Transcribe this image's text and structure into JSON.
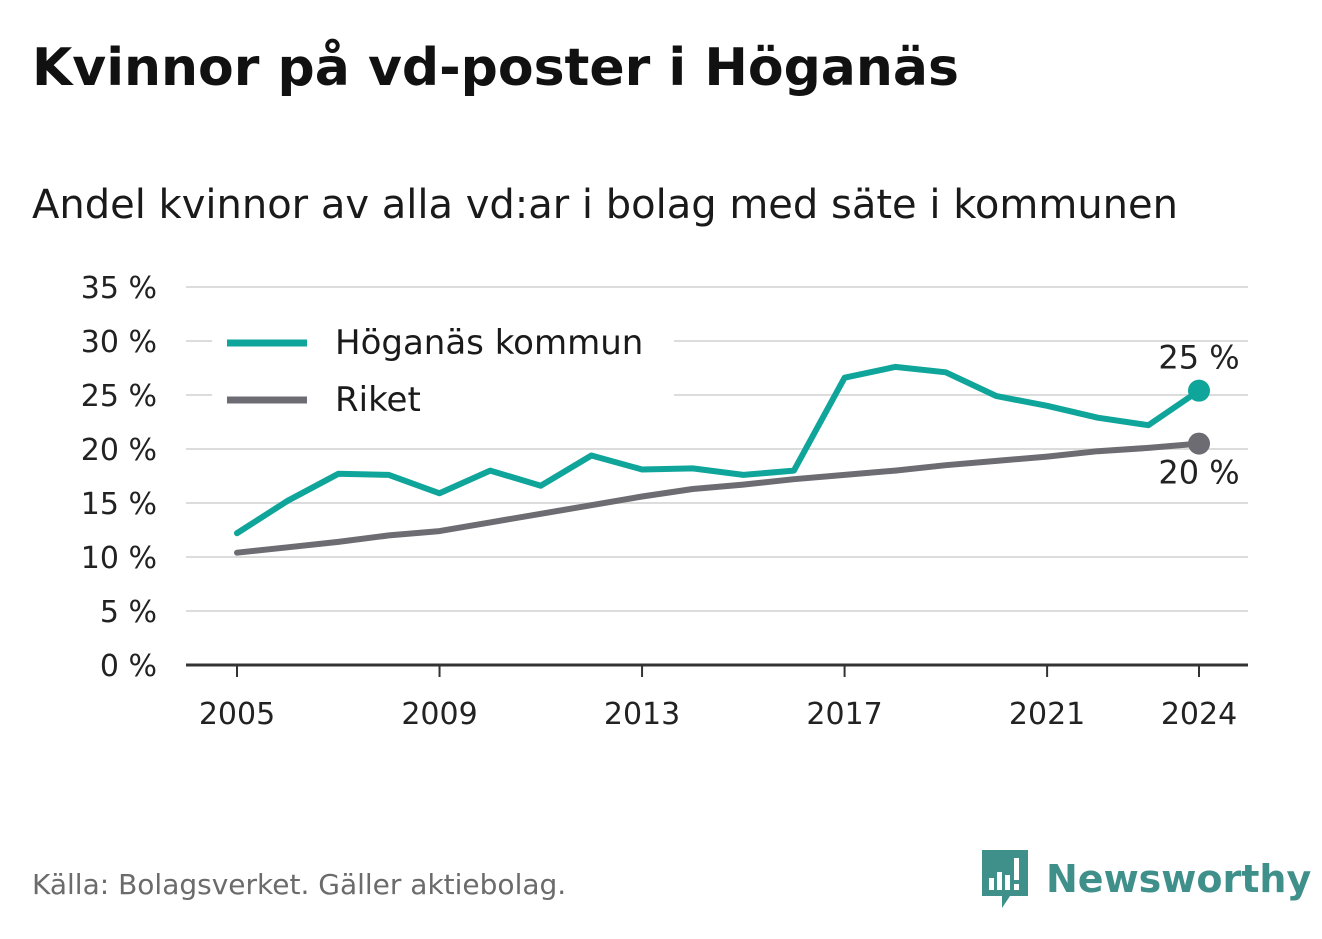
{
  "title": "Kvinnor på vd-poster i Höganäs",
  "subtitle": "Andel kvinnor av alla vd:ar i bolag med säte i kommunen",
  "source": "Källa: Bolagsverket. Gäller aktiebolag.",
  "brand": "Newsworthy",
  "chart_data": {
    "type": "line",
    "x": [
      2005,
      2006,
      2007,
      2008,
      2009,
      2010,
      2011,
      2012,
      2013,
      2014,
      2015,
      2016,
      2017,
      2018,
      2019,
      2020,
      2021,
      2022,
      2023,
      2024
    ],
    "series": [
      {
        "name": "Höganäs kommun",
        "color": "#0fa59a",
        "values": [
          12.2,
          15.2,
          17.7,
          17.6,
          15.9,
          18.0,
          16.6,
          19.4,
          18.1,
          18.2,
          17.6,
          18.0,
          26.6,
          27.6,
          27.1,
          24.9,
          24.0,
          22.9,
          22.2,
          25.4
        ],
        "end_label": "25 %"
      },
      {
        "name": "Riket",
        "color": "#6d6c72",
        "values": [
          10.4,
          10.9,
          11.4,
          12.0,
          12.4,
          13.2,
          14.0,
          14.8,
          15.6,
          16.3,
          16.7,
          17.2,
          17.6,
          18.0,
          18.5,
          18.9,
          19.3,
          19.8,
          20.1,
          20.5
        ],
        "end_label": "20 %"
      }
    ],
    "xticks": [
      2005,
      2009,
      2013,
      2017,
      2021,
      2024
    ],
    "xtick_labels": [
      "2005",
      "2009",
      "2013",
      "2017",
      "2021",
      "2024"
    ],
    "yticks": [
      0,
      5,
      10,
      15,
      20,
      25,
      30,
      35
    ],
    "ytick_labels": [
      "0 %",
      "5 %",
      "10 %",
      "15 %",
      "20 %",
      "25 %",
      "30 %",
      "35 %"
    ],
    "ylim": [
      0,
      35
    ],
    "xlabel": "",
    "ylabel": "",
    "grid": true,
    "legend_position": "top-left"
  }
}
